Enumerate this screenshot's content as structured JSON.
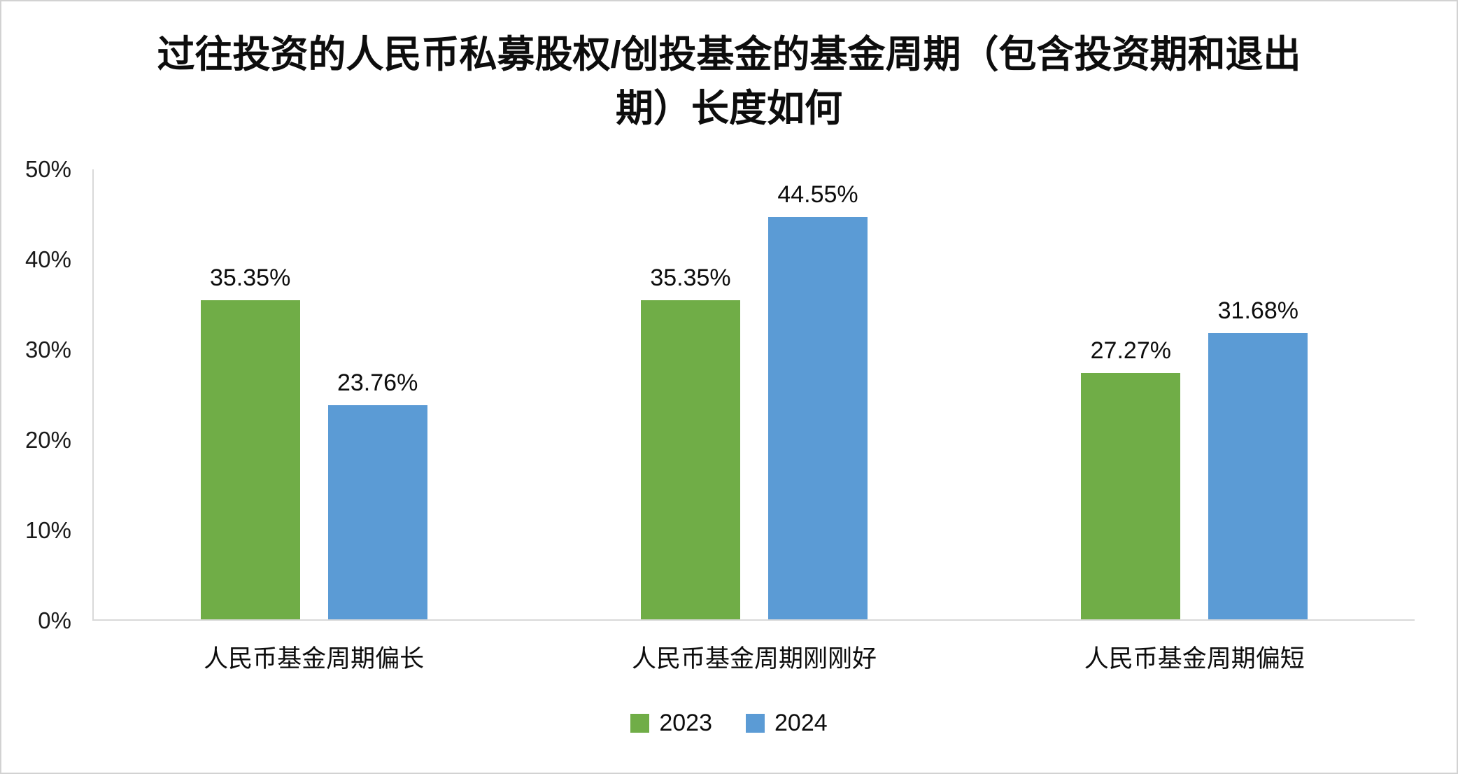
{
  "chart_data": {
    "type": "bar",
    "title": "过往投资的人民币私募股权/创投基金的基金周期（包含投资期和退出期）长度如何",
    "categories": [
      "人民币基金周期偏长",
      "人民币基金周期刚刚好",
      "人民币基金周期偏短"
    ],
    "series": [
      {
        "name": "2023",
        "color": "#70AD47",
        "values": [
          35.35,
          35.35,
          27.27
        ]
      },
      {
        "name": "2024",
        "color": "#5B9BD5",
        "values": [
          23.76,
          44.55,
          31.68
        ]
      }
    ],
    "value_labels": [
      [
        "35.35%",
        "35.35%",
        "27.27%"
      ],
      [
        "23.76%",
        "44.55%",
        "31.68%"
      ]
    ],
    "ylim": [
      0,
      50
    ],
    "ytick_values": [
      0,
      10,
      20,
      30,
      40,
      50
    ],
    "yticks": [
      "0%",
      "10%",
      "20%",
      "30%",
      "40%",
      "50%"
    ],
    "legend_position": "bottom",
    "grid": false,
    "colors": {
      "axis_line": "#d9d9d9",
      "text": "#0d0d0d",
      "series_2023": "#70AD47",
      "series_2024": "#5B9BD5"
    }
  }
}
